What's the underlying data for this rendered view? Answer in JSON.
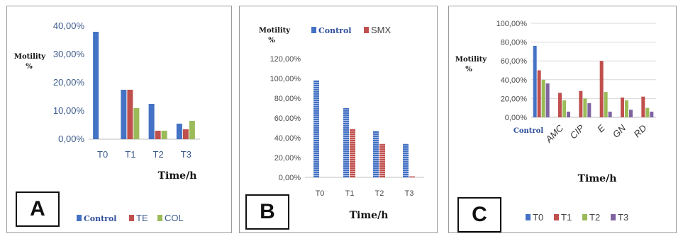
{
  "chart_data": [
    {
      "type": "bar",
      "panel_label": "A",
      "xlabel": "Time/h",
      "ylabel": "Motility %",
      "categories": [
        "T0",
        "T1",
        "T2",
        "T3"
      ],
      "ylim": [
        0,
        40
      ],
      "yticks": [
        "0,00%",
        "10,00%",
        "20,00%",
        "30,00%",
        "40,00%"
      ],
      "series": [
        {
          "name": "Control",
          "color": "#4472C4",
          "values": [
            38,
            17.5,
            12.5,
            5.5
          ]
        },
        {
          "name": "TE",
          "color": "#C0504D",
          "values": [
            0,
            17.5,
            3,
            3.5
          ]
        },
        {
          "name": "COL",
          "color": "#9BBB59",
          "values": [
            0,
            11,
            3,
            6.5
          ]
        }
      ],
      "legend": "bottom",
      "grid": false
    },
    {
      "type": "bar",
      "panel_label": "B",
      "xlabel": "Time/h",
      "ylabel": "Motility %",
      "categories": [
        "T0",
        "T1",
        "T2",
        "T3"
      ],
      "ylim": [
        0,
        120
      ],
      "yticks": [
        "0,00%",
        "20,00%",
        "40,00%",
        "60,00%",
        "80,00%",
        "100,00%",
        "120,00%"
      ],
      "series": [
        {
          "name": "Control",
          "color": "#4472C4",
          "values": [
            98,
            70,
            47,
            34
          ]
        },
        {
          "name": "SMX",
          "color": "#C0504D",
          "values": [
            0,
            49,
            34,
            1
          ]
        }
      ],
      "legend": "top",
      "grid": false
    },
    {
      "type": "bar",
      "panel_label": "C",
      "xlabel": "Time/h",
      "ylabel": "Motility %",
      "categories": [
        "Control",
        "AMC",
        "CIP",
        "E",
        "GN",
        "RD"
      ],
      "ylim": [
        0,
        100
      ],
      "yticks": [
        "0,00%",
        "20,00%",
        "40,00%",
        "60,00%",
        "80,00%",
        "100,00%"
      ],
      "series": [
        {
          "name": "T0",
          "color": "#4472C4",
          "values": [
            76,
            0,
            0,
            0,
            0,
            0
          ]
        },
        {
          "name": "T1",
          "color": "#C0504D",
          "values": [
            50,
            26,
            28,
            60,
            21,
            22
          ]
        },
        {
          "name": "T2",
          "color": "#9BBB59",
          "values": [
            40,
            18,
            20,
            27,
            18,
            10
          ]
        },
        {
          "name": "T3",
          "color": "#8064A2",
          "values": [
            36,
            6,
            15,
            6,
            8,
            6
          ]
        }
      ],
      "legend": "bottom",
      "grid": true
    }
  ]
}
